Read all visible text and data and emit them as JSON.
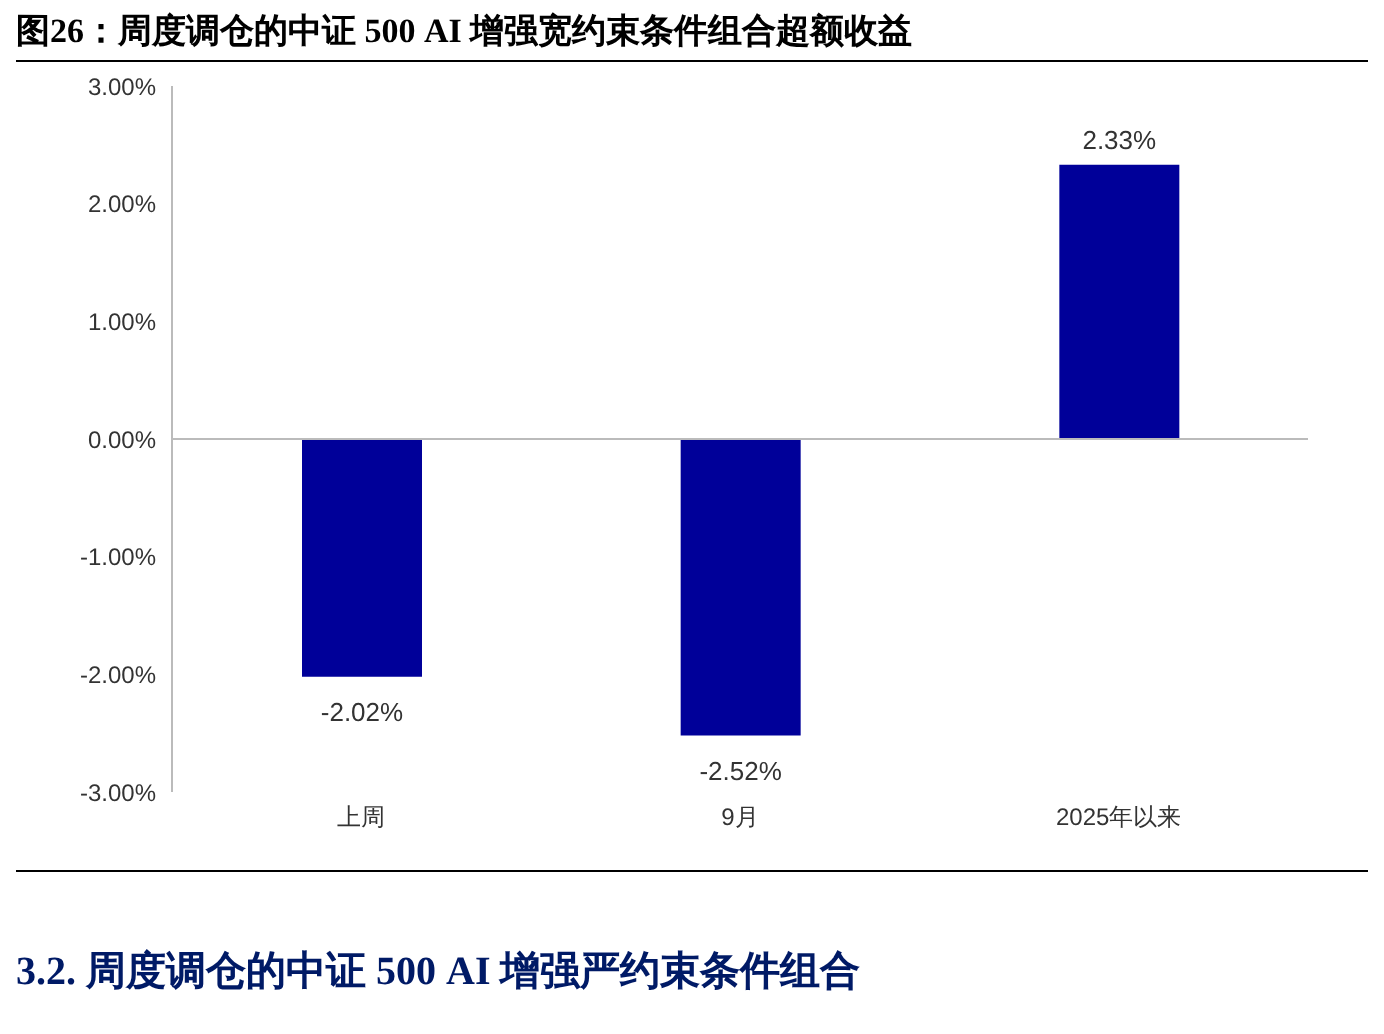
{
  "chart_data": {
    "type": "bar",
    "title": "图26：周度调仓的中证 500 AI 增强宽约束条件组合超额收益",
    "categories": [
      "上周",
      "9月",
      "2025年以来"
    ],
    "values": [
      -2.02,
      -2.52,
      2.33
    ],
    "value_labels": [
      "-2.02%",
      "-2.52%",
      "2.33%"
    ],
    "color": "#000099",
    "ylim": [
      -3,
      3
    ],
    "yticks": [
      {
        "value": -3,
        "label": "-3.00%"
      },
      {
        "value": -2,
        "label": "-2.00%"
      },
      {
        "value": -1,
        "label": "-1.00%"
      },
      {
        "value": 0,
        "label": "0.00%"
      },
      {
        "value": 1,
        "label": "1.00%"
      },
      {
        "value": 2,
        "label": "2.00%"
      },
      {
        "value": 3,
        "label": "3.00%"
      }
    ],
    "annotations": [
      "3.2.  周度调仓的中证 500 AI 增强严约束条件组合"
    ]
  }
}
